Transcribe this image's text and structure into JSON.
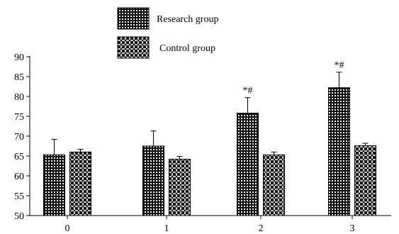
{
  "chart_data": {
    "type": "bar",
    "categories": [
      "0",
      "1",
      "2",
      "3"
    ],
    "series": [
      {
        "name": "Research group",
        "values": [
          65.3,
          67.5,
          75.8,
          82.2
        ],
        "error": [
          3.9,
          3.8,
          3.9,
          3.9
        ],
        "annotations": [
          "",
          "",
          "*#",
          "*#"
        ],
        "pattern": "dense-check"
      },
      {
        "name": "Control group",
        "values": [
          66.0,
          64.2,
          65.3,
          67.6
        ],
        "error": [
          0.7,
          0.7,
          0.7,
          0.6
        ],
        "annotations": [
          "",
          "",
          "",
          ""
        ],
        "pattern": "diamond-check"
      }
    ],
    "ylim": [
      50,
      90
    ],
    "yticks": [
      50,
      55,
      60,
      65,
      70,
      75,
      80,
      85,
      90
    ],
    "xlabel": "",
    "ylabel": "",
    "grid": false,
    "legend_position": "top-center"
  }
}
